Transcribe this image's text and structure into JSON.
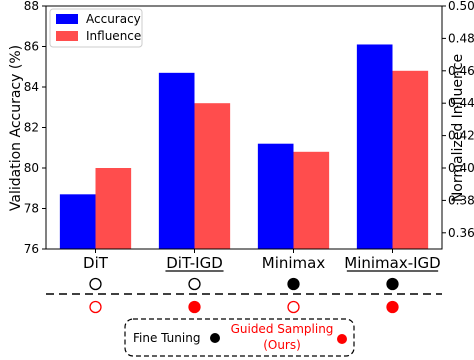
{
  "chart_data": {
    "type": "bar",
    "categories": [
      "DiT",
      "DiT-IGD",
      "Minimax",
      "Minimax-IGD"
    ],
    "underlined_categories": [
      "DiT-IGD",
      "Minimax-IGD"
    ],
    "series": [
      {
        "name": "Accuracy",
        "axis": "left",
        "color": "#0000ff",
        "values": [
          78.7,
          84.7,
          81.2,
          86.1
        ]
      },
      {
        "name": "Influence",
        "axis": "right",
        "color": "#ff4d4d",
        "values": [
          0.4,
          0.44,
          0.41,
          0.46
        ]
      }
    ],
    "ylabel": "Validation Accuracy (%)",
    "ylim": [
      76,
      88
    ],
    "yticks": [
      "76",
      "78",
      "80",
      "82",
      "84",
      "86",
      "88"
    ],
    "y2label": "Normalized Influence",
    "y2lim": [
      0.35,
      0.5
    ],
    "y2ticks": [
      "0.36",
      "0.38",
      "0.40",
      "0.42",
      "0.44",
      "0.46",
      "0.48",
      "0.50"
    ],
    "legend_position": "top-left",
    "grid": false,
    "method_indicators": [
      {
        "category": "DiT",
        "fine_tuning": false,
        "guided_sampling": false
      },
      {
        "category": "DiT-IGD",
        "fine_tuning": false,
        "guided_sampling": true
      },
      {
        "category": "Minimax",
        "fine_tuning": true,
        "guided_sampling": false
      },
      {
        "category": "Minimax-IGD",
        "fine_tuning": true,
        "guided_sampling": true
      }
    ],
    "indicator_legend": {
      "fine_tuning": {
        "label": "Fine Tuning",
        "color": "#000000"
      },
      "guided_sampling": {
        "label_line1": "Guided Sampling",
        "label_line2": "(Ours)",
        "color": "#ff0000"
      }
    }
  }
}
